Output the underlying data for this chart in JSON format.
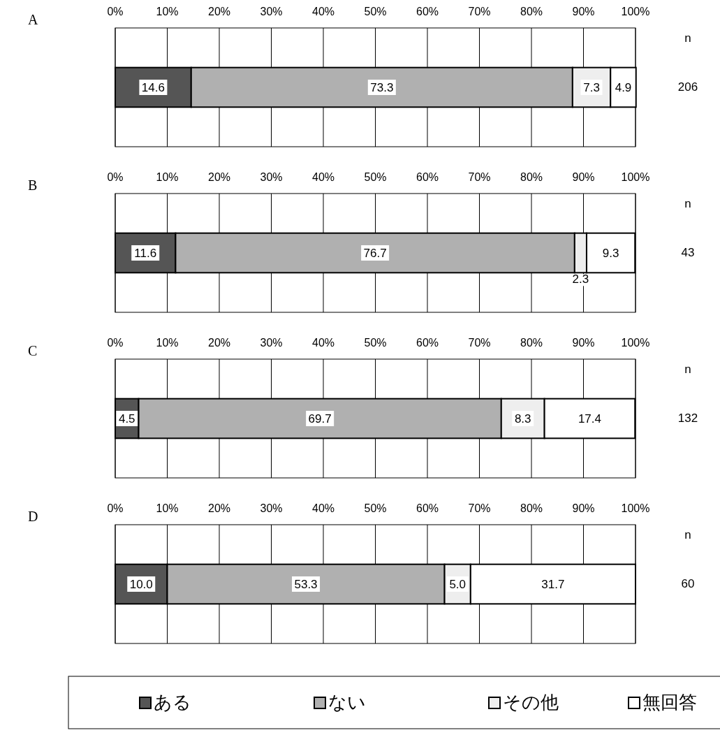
{
  "chart_data": [
    {
      "type": "bar",
      "title": "A",
      "orientation": "horizontal",
      "stacked": true,
      "categories": [
        null
      ],
      "series": [
        {
          "color": "#555555",
          "values": [
            14.6
          ],
          "value_labels": [
            "14.6"
          ]
        },
        {
          "color": "#b0b0b0",
          "values": [
            73.3
          ],
          "value_labels": [
            "73.3"
          ]
        },
        {
          "color": "#eeeeee",
          "values": [
            7.3
          ],
          "value_labels": [
            "7.3"
          ]
        },
        {
          "color": "#ffffff",
          "values": [
            4.9
          ],
          "value_labels": [
            "4.9"
          ]
        }
      ],
      "xlim": [
        0,
        100
      ],
      "xticks": [
        {
          "value": 0,
          "label": "0%"
        },
        {
          "value": 10,
          "label": "10%"
        },
        {
          "value": 20,
          "label": "20%"
        },
        {
          "value": 30,
          "label": "30%"
        },
        {
          "value": 40,
          "label": "40%"
        },
        {
          "value": 50,
          "label": "50%"
        },
        {
          "value": 60,
          "label": "60%"
        },
        {
          "value": 70,
          "label": "70%"
        },
        {
          "value": 80,
          "label": "80%"
        },
        {
          "value": 90,
          "label": "90%"
        },
        {
          "value": 100,
          "label": "100%"
        }
      ],
      "tick_labels": "x",
      "grid": true,
      "annotations": [
        "n",
        "206"
      ]
    },
    {
      "type": "bar",
      "title": "B",
      "orientation": "horizontal",
      "stacked": true,
      "categories": [
        null
      ],
      "series": [
        {
          "color": "#555555",
          "values": [
            11.6
          ],
          "value_labels": [
            "11.6"
          ]
        },
        {
          "color": "#b0b0b0",
          "values": [
            76.7
          ],
          "value_labels": [
            "76.7"
          ]
        },
        {
          "color": "#eeeeee",
          "values": [
            2.3
          ],
          "value_labels": [
            "2.3"
          ]
        },
        {
          "color": "#ffffff",
          "values": [
            9.3
          ],
          "value_labels": [
            "9.3"
          ]
        }
      ],
      "xlim": [
        0,
        100
      ],
      "xticks": [
        {
          "value": 0,
          "label": "0%"
        },
        {
          "value": 10,
          "label": "10%"
        },
        {
          "value": 20,
          "label": "20%"
        },
        {
          "value": 30,
          "label": "30%"
        },
        {
          "value": 40,
          "label": "40%"
        },
        {
          "value": 50,
          "label": "50%"
        },
        {
          "value": 60,
          "label": "60%"
        },
        {
          "value": 70,
          "label": "70%"
        },
        {
          "value": 80,
          "label": "80%"
        },
        {
          "value": 90,
          "label": "90%"
        },
        {
          "value": 100,
          "label": "100%"
        }
      ],
      "tick_labels": "x",
      "grid": true,
      "annotations": [
        "n",
        "43"
      ]
    },
    {
      "type": "bar",
      "title": "C",
      "orientation": "horizontal",
      "stacked": true,
      "categories": [
        null
      ],
      "series": [
        {
          "color": "#555555",
          "values": [
            4.5
          ],
          "value_labels": [
            "4.5"
          ]
        },
        {
          "color": "#b0b0b0",
          "values": [
            69.7
          ],
          "value_labels": [
            "69.7"
          ]
        },
        {
          "color": "#eeeeee",
          "values": [
            8.3
          ],
          "value_labels": [
            "8.3"
          ]
        },
        {
          "color": "#ffffff",
          "values": [
            17.4
          ],
          "value_labels": [
            "17.4"
          ]
        }
      ],
      "xlim": [
        0,
        100
      ],
      "xticks": [
        {
          "value": 0,
          "label": "0%"
        },
        {
          "value": 10,
          "label": "10%"
        },
        {
          "value": 20,
          "label": "20%"
        },
        {
          "value": 30,
          "label": "30%"
        },
        {
          "value": 40,
          "label": "40%"
        },
        {
          "value": 50,
          "label": "50%"
        },
        {
          "value": 60,
          "label": "60%"
        },
        {
          "value": 70,
          "label": "70%"
        },
        {
          "value": 80,
          "label": "80%"
        },
        {
          "value": 90,
          "label": "90%"
        },
        {
          "value": 100,
          "label": "100%"
        }
      ],
      "tick_labels": "x",
      "grid": true,
      "annotations": [
        "n",
        "132"
      ]
    },
    {
      "type": "bar",
      "title": "D",
      "orientation": "horizontal",
      "stacked": true,
      "categories": [
        null
      ],
      "series": [
        {
          "name": "ある",
          "color": "#555555",
          "values": [
            10
          ],
          "value_labels": [
            "10.0"
          ]
        },
        {
          "name": "ない",
          "color": "#b0b0b0",
          "values": [
            53.3
          ],
          "value_labels": [
            "53.3"
          ]
        },
        {
          "name": "その他",
          "color": "#eeeeee",
          "values": [
            5
          ],
          "value_labels": [
            "5.0"
          ]
        },
        {
          "name": "無回答",
          "color": "#ffffff",
          "values": [
            31.7
          ],
          "value_labels": [
            "31.7"
          ]
        }
      ],
      "xlim": [
        0,
        100
      ],
      "xticks": [
        {
          "value": 0,
          "label": "0%"
        },
        {
          "value": 10,
          "label": "10%"
        },
        {
          "value": 20,
          "label": "20%"
        },
        {
          "value": 30,
          "label": "30%"
        },
        {
          "value": 40,
          "label": "40%"
        },
        {
          "value": 50,
          "label": "50%"
        },
        {
          "value": 60,
          "label": "60%"
        },
        {
          "value": 70,
          "label": "70%"
        },
        {
          "value": 80,
          "label": "80%"
        },
        {
          "value": 90,
          "label": "90%"
        },
        {
          "value": 100,
          "label": "100%"
        }
      ],
      "tick_labels": "x",
      "grid": true,
      "legend": "bottom",
      "annotations": [
        "n",
        "60"
      ]
    }
  ]
}
